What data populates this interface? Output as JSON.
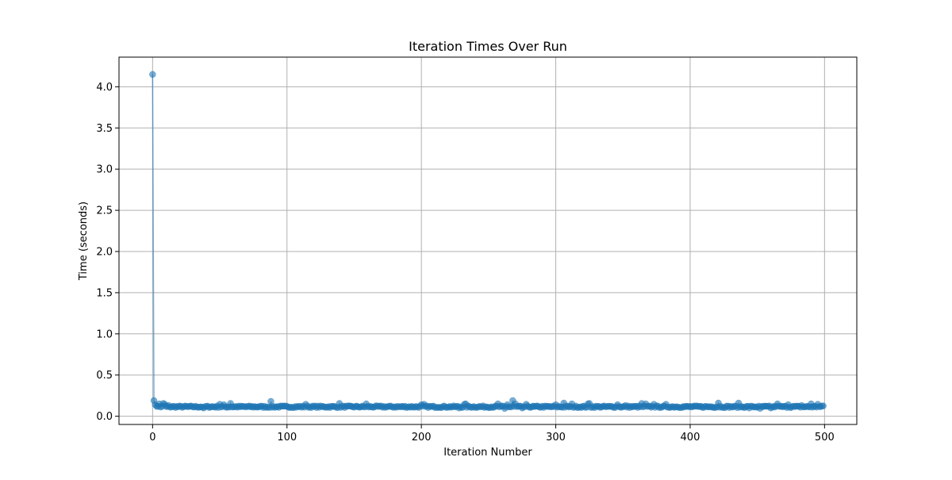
{
  "chart_data": {
    "type": "line",
    "title": "Iteration Times Over Run",
    "xlabel": "Iteration Number",
    "ylabel": "Time (seconds)",
    "xlim": [
      -25,
      524
    ],
    "ylim": [
      -0.1,
      4.36
    ],
    "xticks": [
      0,
      100,
      200,
      300,
      400,
      500
    ],
    "yticks": [
      0.0,
      0.5,
      1.0,
      1.5,
      2.0,
      2.5,
      3.0,
      3.5,
      4.0
    ],
    "ytick_labels": [
      "0.0",
      "0.5",
      "1.0",
      "1.5",
      "2.0",
      "2.5",
      "3.0",
      "3.5",
      "4.0"
    ],
    "grid": true,
    "series_color": "#1f77b4",
    "marker": "circle",
    "alpha": 0.6,
    "n_points": 500,
    "first_value": 4.15,
    "baseline": 0.115,
    "spikes": [
      {
        "x": 1,
        "y": 0.19
      },
      {
        "x": 2,
        "y": 0.14
      },
      {
        "x": 3,
        "y": 0.12
      },
      {
        "x": 5,
        "y": 0.15
      },
      {
        "x": 8,
        "y": 0.155
      },
      {
        "x": 9,
        "y": 0.145
      },
      {
        "x": 12,
        "y": 0.13
      },
      {
        "x": 50,
        "y": 0.145
      },
      {
        "x": 53,
        "y": 0.14
      },
      {
        "x": 58,
        "y": 0.155
      },
      {
        "x": 88,
        "y": 0.18
      },
      {
        "x": 114,
        "y": 0.145
      },
      {
        "x": 139,
        "y": 0.155
      },
      {
        "x": 159,
        "y": 0.15
      },
      {
        "x": 200,
        "y": 0.14
      },
      {
        "x": 202,
        "y": 0.145
      },
      {
        "x": 232,
        "y": 0.145
      },
      {
        "x": 233,
        "y": 0.15
      },
      {
        "x": 257,
        "y": 0.15
      },
      {
        "x": 264,
        "y": 0.14
      },
      {
        "x": 268,
        "y": 0.19
      },
      {
        "x": 270,
        "y": 0.15
      },
      {
        "x": 278,
        "y": 0.145
      },
      {
        "x": 300,
        "y": 0.14
      },
      {
        "x": 306,
        "y": 0.16
      },
      {
        "x": 312,
        "y": 0.15
      },
      {
        "x": 324,
        "y": 0.15
      },
      {
        "x": 325,
        "y": 0.155
      },
      {
        "x": 346,
        "y": 0.14
      },
      {
        "x": 352,
        "y": 0.13
      },
      {
        "x": 364,
        "y": 0.155
      },
      {
        "x": 367,
        "y": 0.15
      },
      {
        "x": 373,
        "y": 0.145
      },
      {
        "x": 382,
        "y": 0.145
      },
      {
        "x": 421,
        "y": 0.16
      },
      {
        "x": 436,
        "y": 0.16
      },
      {
        "x": 465,
        "y": 0.15
      },
      {
        "x": 473,
        "y": 0.14
      },
      {
        "x": 483,
        "y": 0.13
      },
      {
        "x": 490,
        "y": 0.15
      },
      {
        "x": 495,
        "y": 0.145
      },
      {
        "x": 499,
        "y": 0.125
      }
    ],
    "dips": [
      {
        "x": 38,
        "y": 0.1
      },
      {
        "x": 228,
        "y": 0.1
      },
      {
        "x": 262,
        "y": 0.095
      },
      {
        "x": 275,
        "y": 0.1
      },
      {
        "x": 444,
        "y": 0.1
      },
      {
        "x": 452,
        "y": 0.095
      },
      {
        "x": 460,
        "y": 0.1
      }
    ]
  }
}
